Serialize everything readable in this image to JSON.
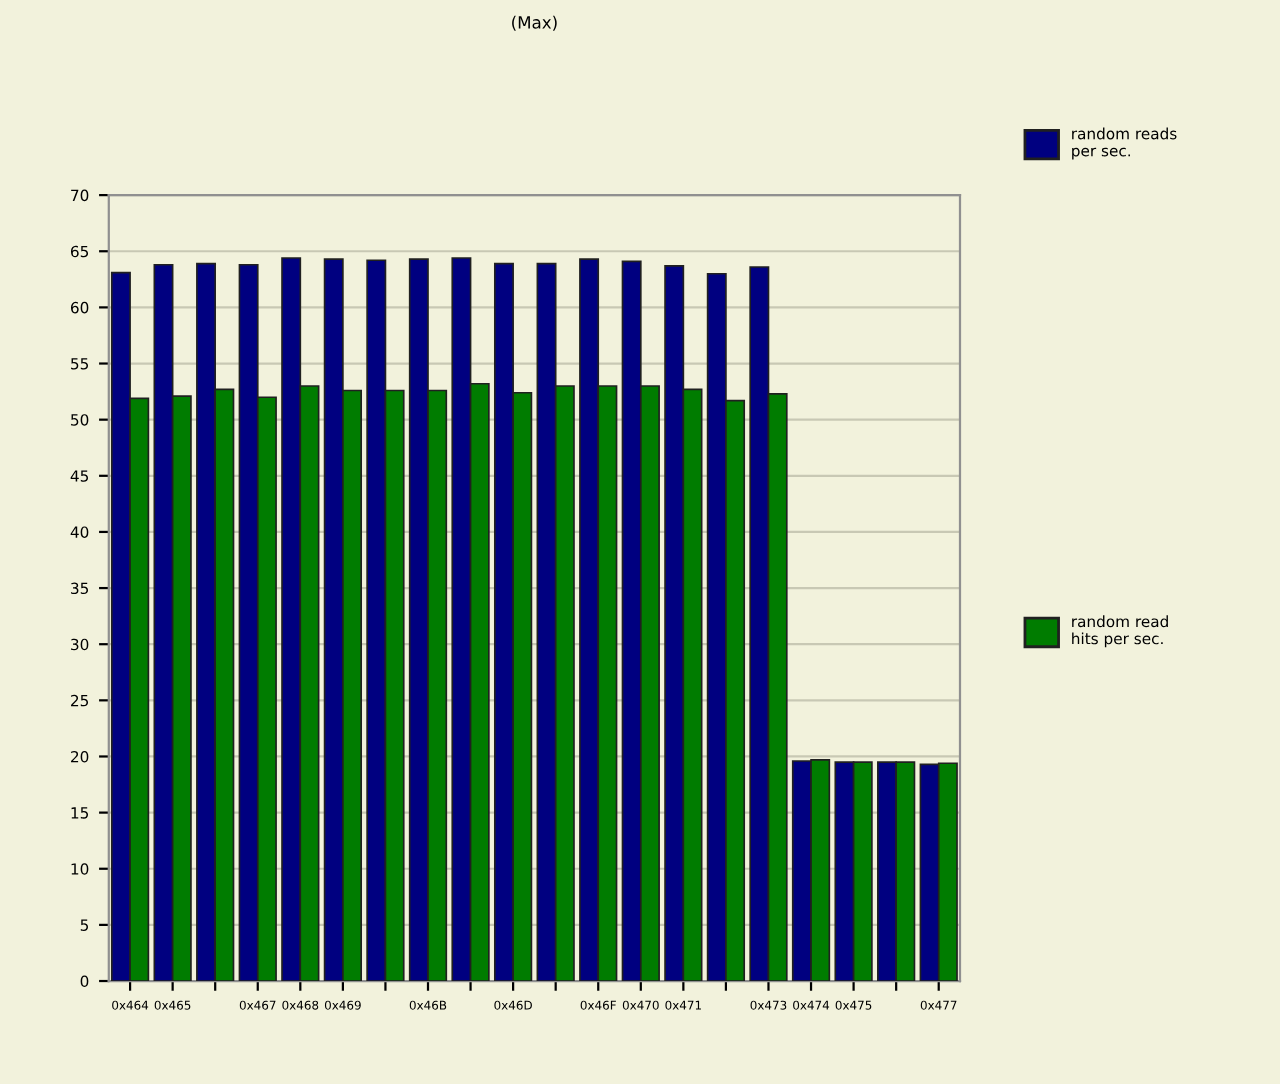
{
  "chart_data": {
    "type": "bar",
    "title": "(Max)",
    "categories": [
      "0x464",
      "0x465",
      null,
      "0x467",
      "0x468",
      "0x469",
      null,
      "0x46B",
      null,
      "0x46D",
      null,
      "0x46F",
      "0x470",
      "0x471",
      null,
      "0x473",
      "0x474",
      "0x475",
      null,
      "0x477"
    ],
    "series": [
      {
        "name": "random reads\nper sec.",
        "color": "#000080",
        "values": [
          63.1,
          63.8,
          63.9,
          63.8,
          64.4,
          64.3,
          64.2,
          64.3,
          64.4,
          63.9,
          63.9,
          64.3,
          64.1,
          63.7,
          63.0,
          63.6,
          19.6,
          19.5,
          19.5,
          19.3
        ]
      },
      {
        "name": "random read\nhits per sec.",
        "color": "#007c00",
        "values": [
          51.9,
          52.1,
          52.7,
          52.0,
          53.0,
          52.6,
          52.6,
          52.6,
          53.2,
          52.4,
          53.0,
          53.0,
          53.0,
          52.7,
          51.7,
          52.3,
          19.7,
          19.5,
          19.5,
          19.4
        ]
      }
    ],
    "ylim": [
      0,
      70
    ],
    "yticks": [
      0,
      5,
      10,
      15,
      20,
      25,
      30,
      35,
      40,
      45,
      50,
      55,
      60,
      65,
      70
    ],
    "grid": "y",
    "legend": "right"
  }
}
